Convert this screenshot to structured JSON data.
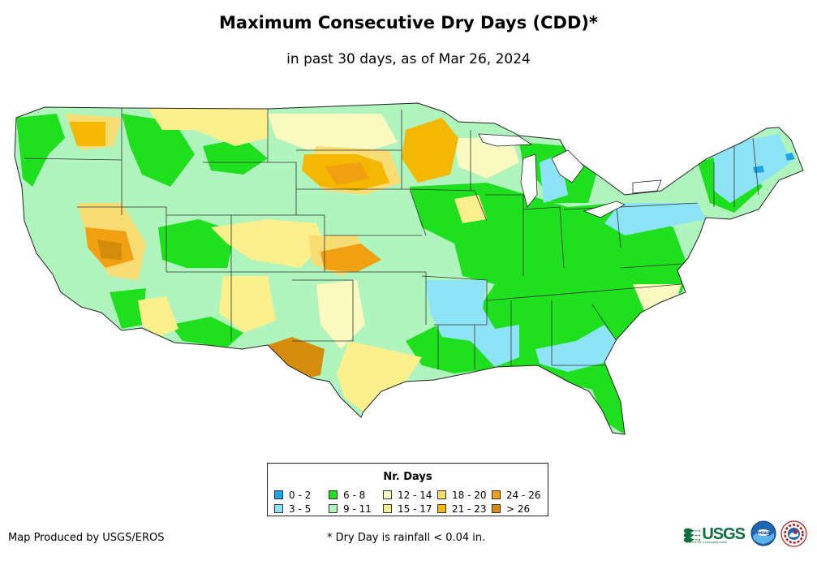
{
  "title": "Maximum Consecutive Dry Days (CDD)*",
  "subtitle": "in past 30 days, as of Mar 26, 2024",
  "legend": {
    "title": "Nr. Days",
    "items": [
      {
        "label": "0 - 2",
        "color": "#1aa6e8"
      },
      {
        "label": "3 - 5",
        "color": "#8ee4f7"
      },
      {
        "label": "6 - 8",
        "color": "#1ee01e"
      },
      {
        "label": "9 - 11",
        "color": "#b0f5be"
      },
      {
        "label": "12 - 14",
        "color": "#fbfac0"
      },
      {
        "label": "15 - 17",
        "color": "#fbf08c"
      },
      {
        "label": "18 - 20",
        "color": "#f8dc74"
      },
      {
        "label": "21 - 23",
        "color": "#f5b800"
      },
      {
        "label": "24 - 26",
        "color": "#f0a010"
      },
      {
        "label": "> 26",
        "color": "#d48c0a"
      }
    ]
  },
  "credit": "Map Produced by USGS/EROS",
  "footnote": "* Dry Day is rainfall < 0.04 in.",
  "logos": {
    "usgs_text": "USGS",
    "usgs_tagline": "science for a changing world",
    "noaa_text": "noaa"
  },
  "map_layers": [
    {
      "name": "region-3-5-days",
      "color": "#8ee4f7"
    },
    {
      "name": "region-6-8-days",
      "color": "#1ee01e"
    },
    {
      "name": "region-9-11-days",
      "color": "#b0f5be"
    },
    {
      "name": "region-12-14-days",
      "color": "#fbfac0"
    },
    {
      "name": "region-15-17-days",
      "color": "#fbf08c"
    },
    {
      "name": "region-18-20-days",
      "color": "#f8dc74"
    },
    {
      "name": "region-21-23-days",
      "color": "#f5b800"
    },
    {
      "name": "region-24-26-days",
      "color": "#f0a010"
    },
    {
      "name": "region-over-26-days",
      "color": "#d48c0a"
    },
    {
      "name": "region-0-2-days",
      "color": "#1aa6e8"
    }
  ]
}
